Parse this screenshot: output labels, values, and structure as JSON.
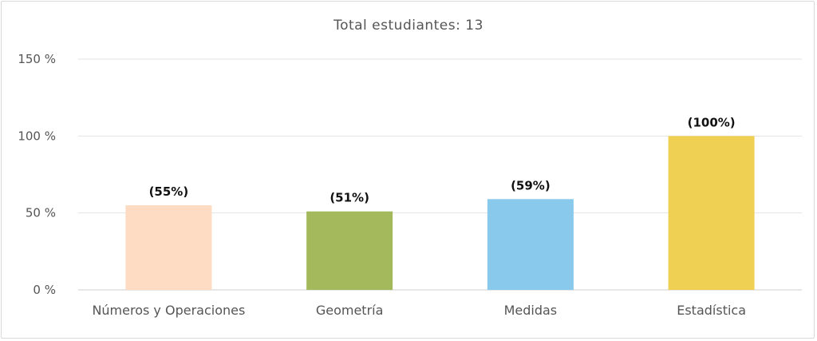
{
  "chart_data": {
    "type": "bar",
    "title": "Total estudiantes: 13",
    "categories": [
      "Números y Operaciones",
      "Geometría",
      "Medidas",
      "Estadística"
    ],
    "values": [
      55,
      51,
      59,
      100
    ],
    "data_labels": [
      "(55%)",
      "(51%)",
      "(59%)",
      "(100%)"
    ],
    "colors": [
      "#fddcc3",
      "#a3b95b",
      "#88c9ec",
      "#f0d053"
    ],
    "yticks": [
      0,
      50,
      100,
      150
    ],
    "ytick_labels": [
      "0 %",
      "50 %",
      "100 %",
      "150 %"
    ],
    "ylim": [
      0,
      150
    ],
    "grid": true,
    "grid_color": "#e3e3e3",
    "xlabel": "",
    "ylabel": ""
  }
}
